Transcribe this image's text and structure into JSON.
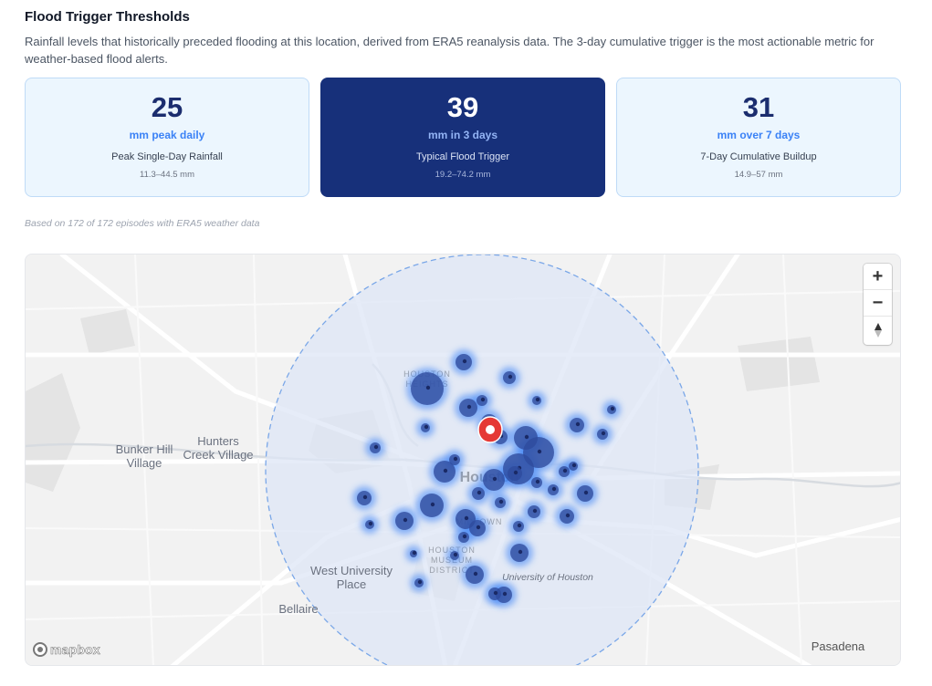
{
  "header": {
    "title": "Flood Trigger Thresholds",
    "description": "Rainfall levels that historically preceded flooding at this location, derived from ERA5 reanalysis data. The 3-day cumulative trigger is the most actionable metric for weather-based flood alerts."
  },
  "cards": [
    {
      "value": "25",
      "unit": "mm peak daily",
      "label": "Peak Single-Day Rainfall",
      "range": "11.3–44.5 mm"
    },
    {
      "value": "39",
      "unit": "mm in 3 days",
      "label": "Typical Flood Trigger",
      "range": "19.2–74.2 mm"
    },
    {
      "value": "31",
      "unit": "mm over 7 days",
      "label": "7-Day Cumulative Buildup",
      "range": "14.9–57 mm"
    }
  ],
  "note": "Based on 172 of 172 episodes with ERA5 weather data",
  "map": {
    "labels": {
      "bunker_hill": "Bunker Hill\nVillage",
      "hunters_creek": "Hunters\nCreek Village",
      "houston": "Houston",
      "houston_heights": "HOUSTON\nHEIGHTS",
      "midtown": "MIDTOWN",
      "museum_district": "HOUSTON\nMUSEUM\nDISTRICT",
      "west_university": "West University\nPlace",
      "university_of_houston": "University of Houston",
      "bellaire": "Bellaire",
      "pasadena": "Pasadena"
    },
    "controls": {
      "zoom_in": "+",
      "zoom_out": "−",
      "compass": "compass"
    },
    "attribution": "mapbox",
    "colors": {
      "radius_fill": "#dbe4f7",
      "radius_stroke": "#7aa7e8",
      "marker": "#e53935",
      "cluster": "#2e4a9c",
      "glow": "#3b82f6"
    }
  }
}
